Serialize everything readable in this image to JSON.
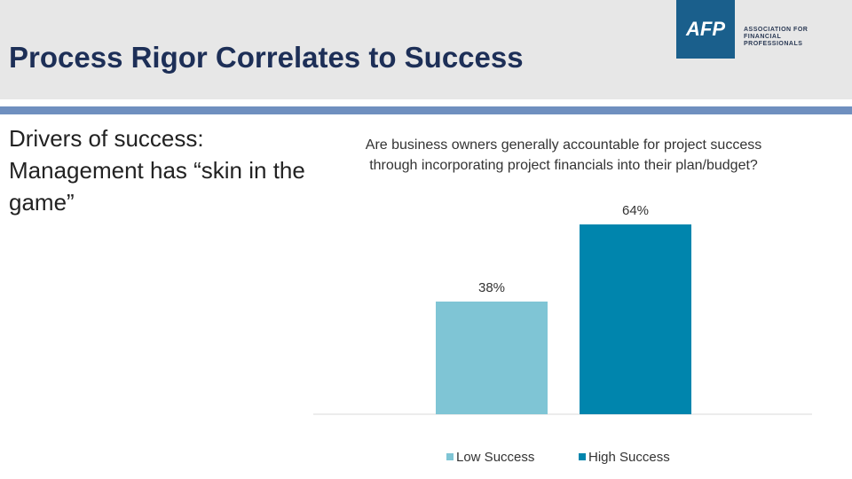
{
  "slide": {
    "title": "Process Rigor Correlates to Success",
    "body_text": "Drivers of success: Management has “skin in the game”",
    "logo": {
      "mark": "AFP",
      "text": "ASSOCIATION FOR FINANCIAL PROFESSIONALS"
    }
  },
  "chart_data": {
    "type": "bar",
    "title": "Are business owners generally accountable for project success through incorporating project financials into their plan/budget?",
    "categories": [
      null
    ],
    "series": [
      {
        "name": "Low Success",
        "color": "#7fc5d5",
        "values": [
          38
        ],
        "value_labels": [
          "38%"
        ]
      },
      {
        "name": "High Success",
        "color": "#0085ad",
        "values": [
          64
        ],
        "value_labels": [
          "64%"
        ]
      }
    ]
  }
}
